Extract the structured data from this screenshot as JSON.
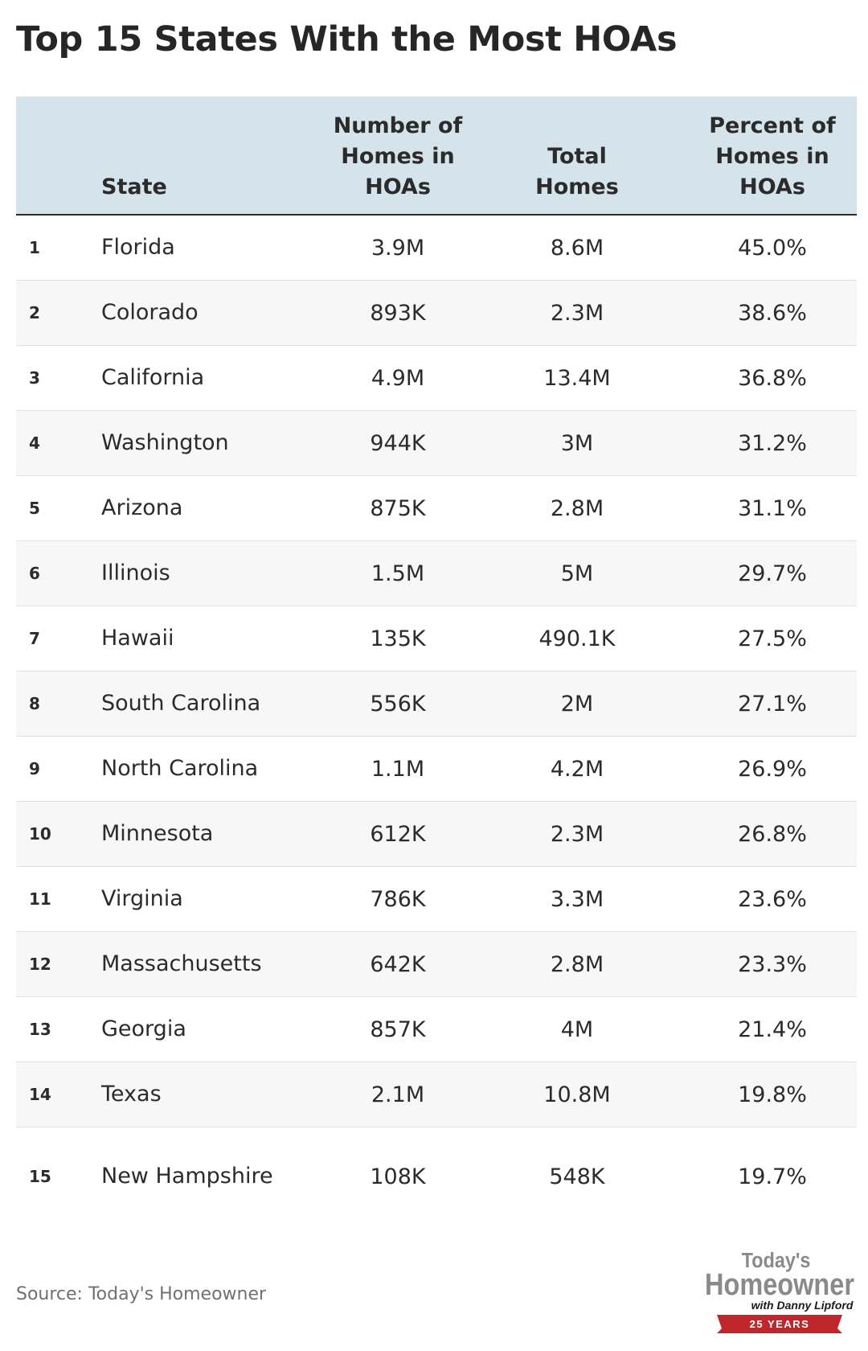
{
  "title": "Top 15 States With the Most HOAs",
  "columns": {
    "state": "State",
    "homes_in_hoas": "Number of Homes in HOAs",
    "total_homes": "Total Homes",
    "percent": "Percent of Homes in HOAs"
  },
  "chart_data": {
    "type": "table",
    "title": "Top 15 States With the Most HOAs",
    "headers": [
      "",
      "State",
      "Number of Homes in HOAs",
      "Total Homes",
      "Percent of Homes in HOAs"
    ],
    "rows": [
      {
        "rank": "1",
        "state": "Florida",
        "homes_in_hoas": "3.9M",
        "total_homes": "8.6M",
        "percent": "45.0%"
      },
      {
        "rank": "2",
        "state": "Colorado",
        "homes_in_hoas": "893K",
        "total_homes": "2.3M",
        "percent": "38.6%"
      },
      {
        "rank": "3",
        "state": "California",
        "homes_in_hoas": "4.9M",
        "total_homes": "13.4M",
        "percent": "36.8%"
      },
      {
        "rank": "4",
        "state": "Washington",
        "homes_in_hoas": "944K",
        "total_homes": "3M",
        "percent": "31.2%"
      },
      {
        "rank": "5",
        "state": "Arizona",
        "homes_in_hoas": "875K",
        "total_homes": "2.8M",
        "percent": "31.1%"
      },
      {
        "rank": "6",
        "state": "Illinois",
        "homes_in_hoas": "1.5M",
        "total_homes": "5M",
        "percent": "29.7%"
      },
      {
        "rank": "7",
        "state": "Hawaii",
        "homes_in_hoas": "135K",
        "total_homes": "490.1K",
        "percent": "27.5%"
      },
      {
        "rank": "8",
        "state": "South Carolina",
        "homes_in_hoas": "556K",
        "total_homes": "2M",
        "percent": "27.1%"
      },
      {
        "rank": "9",
        "state": "North Carolina",
        "homes_in_hoas": "1.1M",
        "total_homes": "4.2M",
        "percent": "26.9%"
      },
      {
        "rank": "10",
        "state": "Minnesota",
        "homes_in_hoas": "612K",
        "total_homes": "2.3M",
        "percent": "26.8%"
      },
      {
        "rank": "11",
        "state": "Virginia",
        "homes_in_hoas": "786K",
        "total_homes": "3.3M",
        "percent": "23.6%"
      },
      {
        "rank": "12",
        "state": "Massachusetts",
        "homes_in_hoas": "642K",
        "total_homes": "2.8M",
        "percent": "23.3%"
      },
      {
        "rank": "13",
        "state": "Georgia",
        "homes_in_hoas": "857K",
        "total_homes": "4M",
        "percent": "21.4%"
      },
      {
        "rank": "14",
        "state": "Texas",
        "homes_in_hoas": "2.1M",
        "total_homes": "10.8M",
        "percent": "19.8%"
      },
      {
        "rank": "15",
        "state": "New Hampshire",
        "homes_in_hoas": "108K",
        "total_homes": "548K",
        "percent": "19.7%"
      }
    ]
  },
  "source": "Source: Today's Homeowner",
  "logo": {
    "line1": "Today's",
    "line2": "Homeowner",
    "line3": "with Danny Lipford",
    "ribbon": "25 YEARS"
  },
  "colors": {
    "header_bg": "#d5e3ea",
    "stripe_bg": "#f7f7f7",
    "logo_gray": "#8a8a8a",
    "ribbon_red": "#c0272d"
  }
}
